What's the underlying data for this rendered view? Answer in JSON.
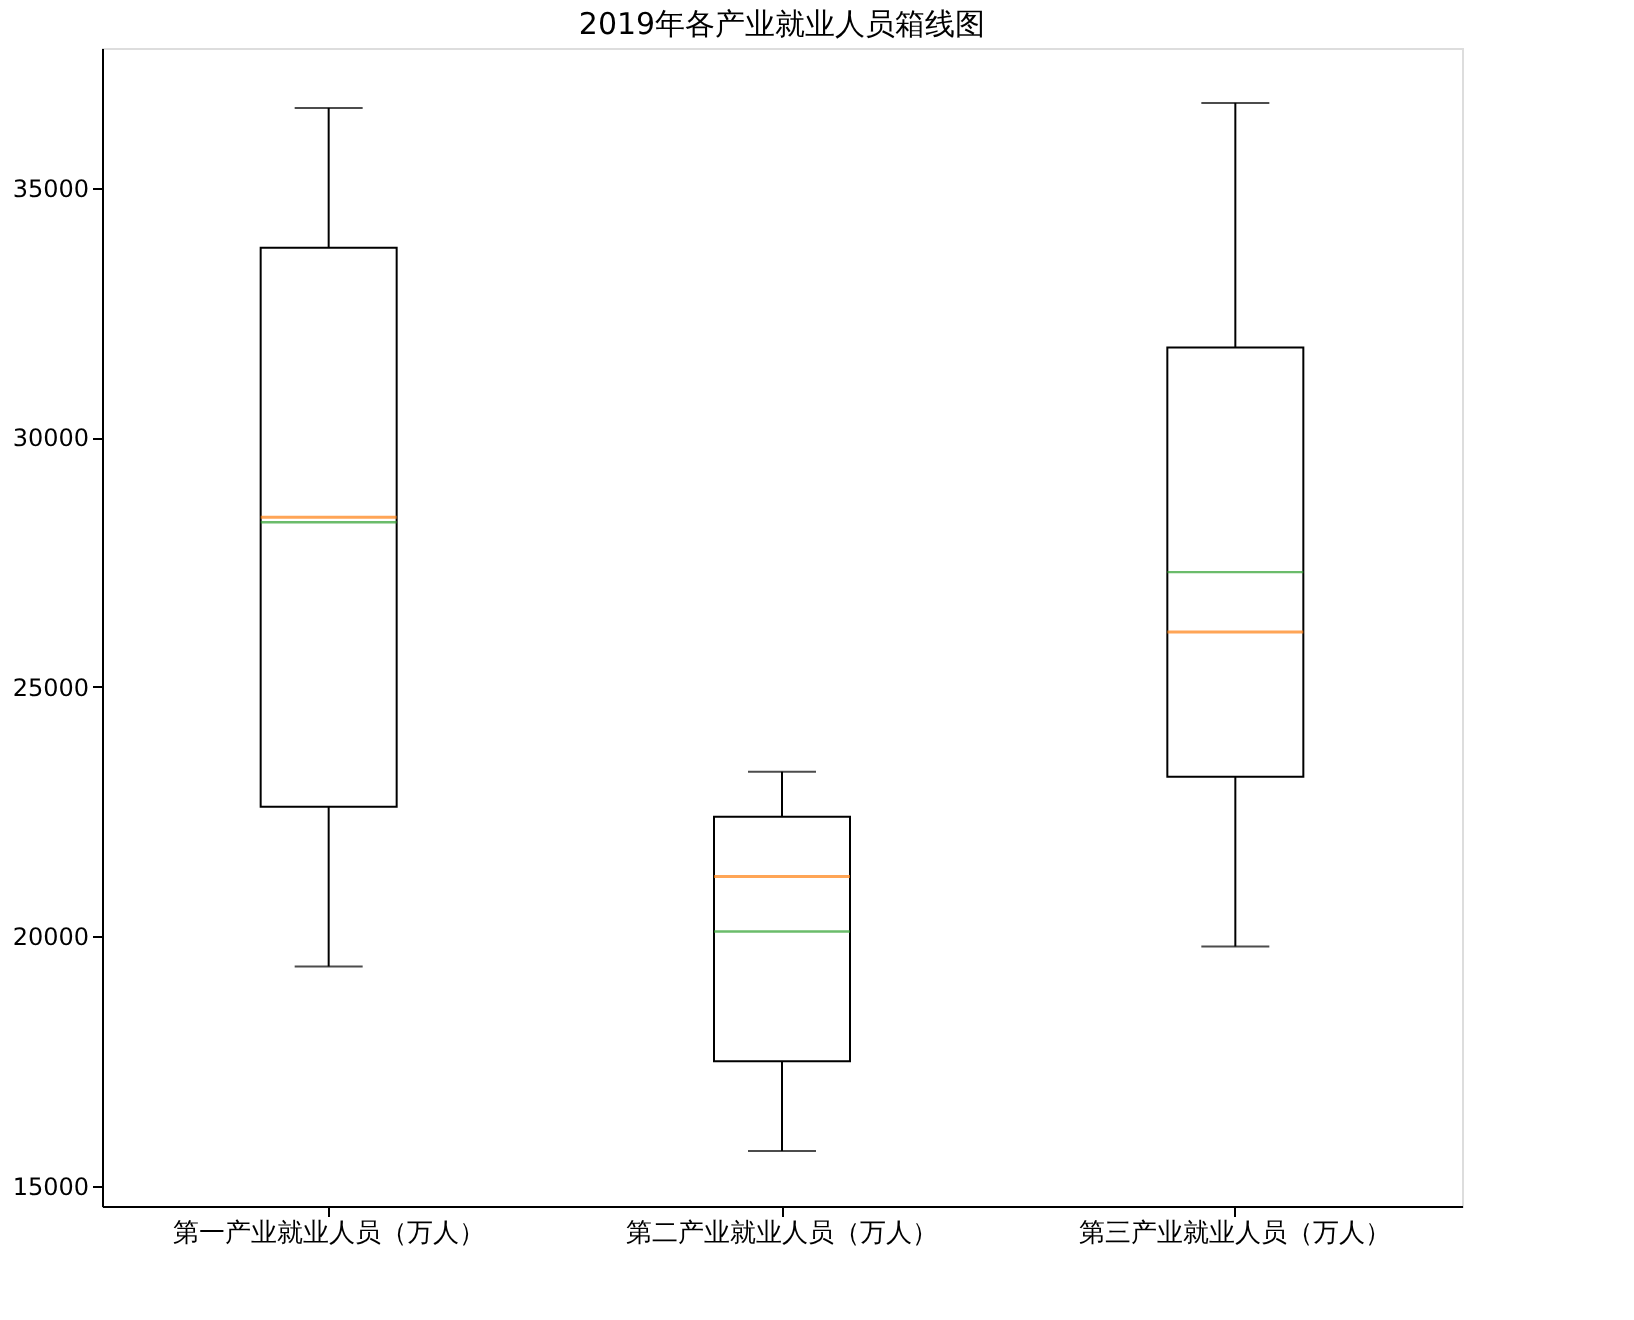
{
  "chart_data": {
    "type": "box",
    "title": "2019年各产业就业人员箱线图",
    "categories": [
      "第一产业就业人员（万人）",
      "第二产业就业人员（万人）",
      "第三产业就业人员（万人）"
    ],
    "boxes": [
      {
        "low": 19400,
        "q1": 22600,
        "median": 28400,
        "q3": 33800,
        "high": 36600,
        "mean": 28300
      },
      {
        "low": 15700,
        "q1": 17500,
        "median": 21200,
        "q3": 22400,
        "high": 23300,
        "mean": 20100
      },
      {
        "low": 19800,
        "q1": 23200,
        "median": 26100,
        "q3": 31800,
        "high": 36700,
        "mean": 27300
      }
    ],
    "ylim": [
      14600,
      37800
    ],
    "yticks": [
      15000,
      20000,
      25000,
      30000,
      35000
    ],
    "grid": false
  }
}
